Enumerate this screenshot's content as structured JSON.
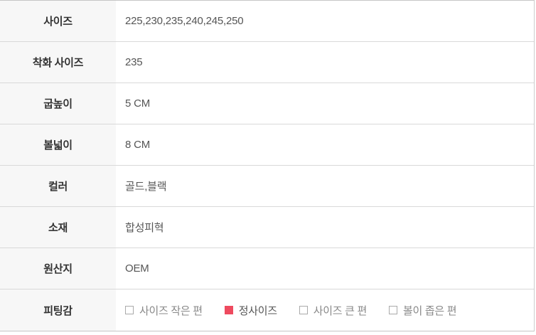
{
  "colors": {
    "accent_checked_square": "#ee4a5f",
    "label_column_bg": "#f7f7f7",
    "separator": "#d9d9d9",
    "outer_border": "#c6c6c6",
    "label_text": "#333333",
    "value_text": "#555555",
    "unchecked_option_text": "#888888"
  },
  "table": {
    "rows": [
      {
        "label": "사이즈",
        "value": "225,230,235,240,245,250"
      },
      {
        "label": "착화 사이즈",
        "value": "235"
      },
      {
        "label": "굽높이",
        "value": "5 CM"
      },
      {
        "label": "볼넓이",
        "value": "8 CM"
      },
      {
        "label": "컬러",
        "value": "골드,블랙"
      },
      {
        "label": "소재",
        "value": "합성피혁"
      },
      {
        "label": "원산지",
        "value": "OEM"
      }
    ],
    "fitting": {
      "label": "피팅감",
      "options": [
        {
          "label": "사이즈 작은 편",
          "checked": false
        },
        {
          "label": "정사이즈",
          "checked": true
        },
        {
          "label": "사이즈 큰 편",
          "checked": false
        },
        {
          "label": "볼이 좁은 편",
          "checked": false
        }
      ]
    }
  }
}
